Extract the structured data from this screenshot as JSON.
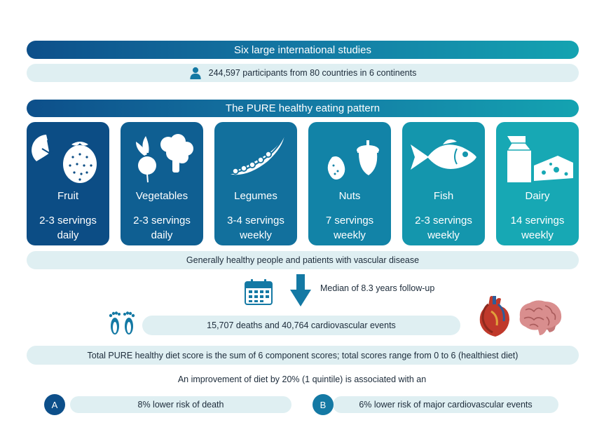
{
  "header": {
    "studies_title": "Six large international studies",
    "participants": "244,597 participants from 80 countries in 6 continents",
    "pattern_title": "The PURE healthy eating pattern"
  },
  "foods": [
    {
      "name": "Fruit",
      "serv_1": "2-3 servings",
      "serv_2": "daily",
      "icon": "fruit-icon"
    },
    {
      "name": "Vegetables",
      "serv_1": "2-3 servings",
      "serv_2": "daily",
      "icon": "vegetables-icon"
    },
    {
      "name": "Legumes",
      "serv_1": "3-4 servings",
      "serv_2": "weekly",
      "icon": "legumes-icon"
    },
    {
      "name": "Nuts",
      "serv_1": "7 servings",
      "serv_2": "weekly",
      "icon": "nuts-icon"
    },
    {
      "name": "Fish",
      "serv_1": "2-3 servings",
      "serv_2": "weekly",
      "icon": "fish-icon"
    },
    {
      "name": "Dairy",
      "serv_1": "14 servings",
      "serv_2": "weekly",
      "icon": "dairy-icon"
    }
  ],
  "population": "Generally healthy people and patients with vascular disease",
  "followup": "Median of 8.3 years follow-up",
  "events": "15,707 deaths and 40,764 cardiovascular events",
  "score": "Total PURE healthy diet score is the sum of 6 component scores; total scores range from 0 to 6 (healthiest diet)",
  "improvement": "An improvement of diet by 20% (1 quintile) is associated with an",
  "results": [
    {
      "letter": "A",
      "text": "8% lower risk of  death"
    },
    {
      "letter": "B",
      "text": "6% lower risk of major cardiovascular events"
    }
  ],
  "colors": {
    "dark_blue": "#0d4f8a",
    "teal": "#17a8b4",
    "pill_bg": "#dfeff2"
  }
}
